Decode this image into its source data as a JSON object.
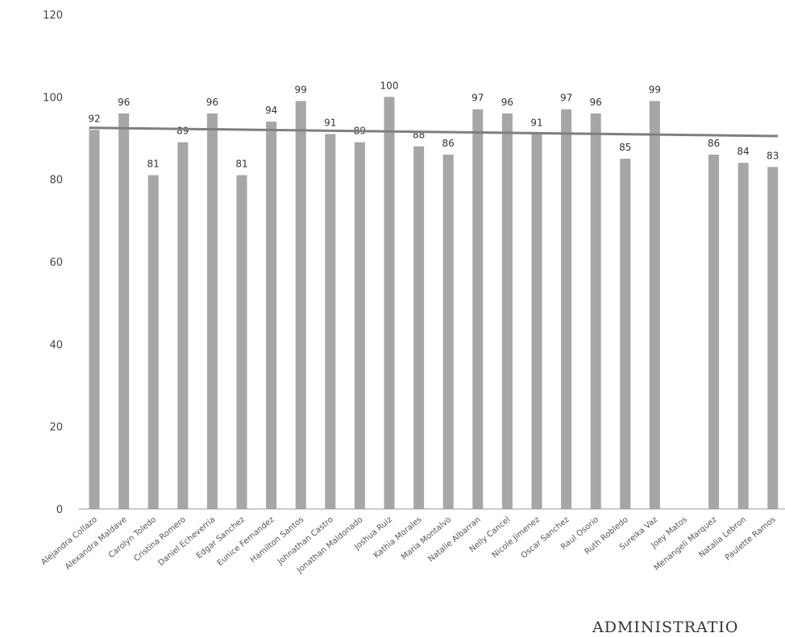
{
  "chart_data": {
    "type": "bar",
    "title": "",
    "xlabel": "",
    "ylabel": "",
    "ylim": [
      0,
      120
    ],
    "yticks": [
      0,
      20,
      40,
      60,
      80,
      100,
      120
    ],
    "grid": false,
    "legend": "none",
    "bar_color": "#a6a6a6",
    "trend_color": "#7f7f7f",
    "categories": [
      "Alejandra Collazo",
      "Alexandra Maldave",
      "Carolyn Toledo",
      "Cristina Romero",
      "Daniel Echeverria",
      "Edgar Sanchez",
      "Eunice Fernandez",
      "Hamilton Santos",
      "Johnathan Castro",
      "Jonathan Maldonado",
      "Joshua Ruiz",
      "Kathia Morales",
      "Maria Montalvo",
      "Natalie Albarran",
      "Nelly Cancel",
      "Nicole Jimenez",
      "Oscar Sanchez",
      "Raul Osorio",
      "Ruth Robledo",
      "Sureika Vaz",
      "Joey Matos",
      "Menangeli Marquez",
      "Natalia Lebron",
      "Paulette Ramos"
    ],
    "values": [
      92,
      96,
      81,
      89,
      96,
      81,
      94,
      99,
      91,
      89,
      100,
      88,
      86,
      97,
      96,
      91,
      97,
      96,
      85,
      99,
      null,
      86,
      84,
      83
    ],
    "data_labels": [
      "92",
      "96",
      "81",
      "89",
      "96",
      "81",
      "94",
      "99",
      "91",
      "89",
      "100",
      "88",
      "86",
      "97",
      "96",
      "91",
      "97",
      "96",
      "85",
      "99",
      "",
      "86",
      "84",
      "83"
    ],
    "trend_line": {
      "type": "linear",
      "start": 92.5,
      "end": 90.5
    }
  },
  "footer_text": "ADMINISTRATIO"
}
